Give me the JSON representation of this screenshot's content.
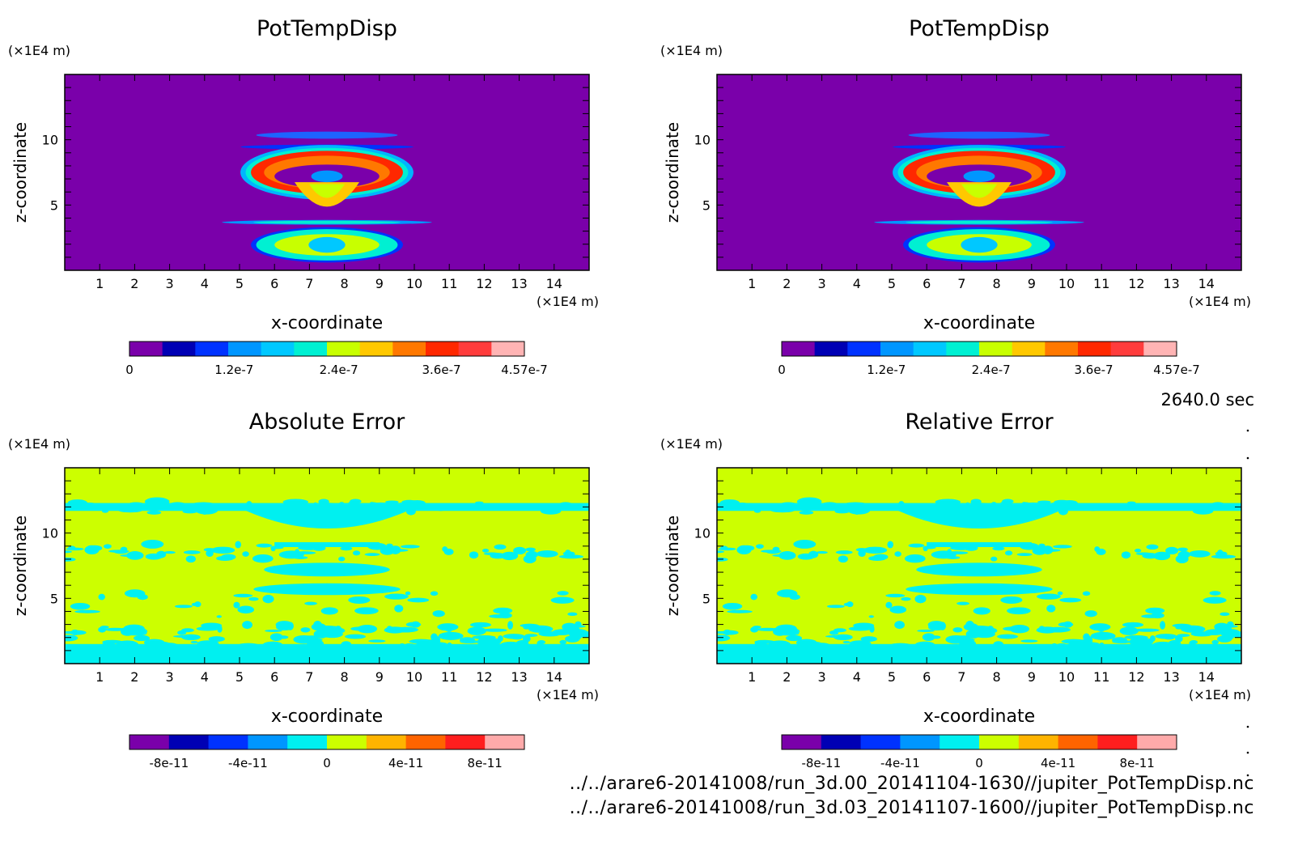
{
  "figure": {
    "time_label": "2640.0 sec",
    "file_lines": [
      "../../arare6-20141008/run_3d.00_20141104-1630//jupiter_PotTempDisp.nc",
      "../../arare6-20141008/run_3d.03_20141107-1600//jupiter_PotTempDisp.nc"
    ]
  },
  "colors": {
    "background_field": "#7a00aa",
    "error_field": "#ccff00",
    "error_patch": "#00f0f0"
  },
  "chart_data": [
    {
      "type": "heatmap",
      "title": "PotTempDisp",
      "xlabel": "x-coordinate",
      "ylabel": "z-coordinate",
      "x_unit_label": "(×1E4 m)",
      "y_unit_label": "(×1E4 m)",
      "xlim": [
        0,
        15
      ],
      "ylim": [
        0,
        15
      ],
      "x_ticks": [
        "1",
        "2",
        "3",
        "4",
        "5",
        "6",
        "7",
        "8",
        "9",
        "10",
        "11",
        "12",
        "13",
        "14"
      ],
      "y_ticks": [
        "5",
        "10"
      ],
      "colorbar": {
        "colors": [
          "#7a00aa",
          "#0000b4",
          "#0032ff",
          "#0096ff",
          "#00c8ff",
          "#00f0d2",
          "#c8ff00",
          "#ffc800",
          "#ff7800",
          "#ff2800",
          "#ff3c3c",
          "#ffb4b4"
        ],
        "labels": [
          "0",
          "1.2e-7",
          "2.4e-7",
          "3.6e-7",
          "4.57e-7"
        ]
      }
    },
    {
      "type": "heatmap",
      "title": "PotTempDisp",
      "xlabel": "x-coordinate",
      "ylabel": "z-coordinate",
      "x_unit_label": "(×1E4 m)",
      "y_unit_label": "(×1E4 m)",
      "xlim": [
        0,
        15
      ],
      "ylim": [
        0,
        15
      ],
      "x_ticks": [
        "1",
        "2",
        "3",
        "4",
        "5",
        "6",
        "7",
        "8",
        "9",
        "10",
        "11",
        "12",
        "13",
        "14"
      ],
      "y_ticks": [
        "5",
        "10"
      ],
      "colorbar": {
        "colors": [
          "#7a00aa",
          "#0000b4",
          "#0032ff",
          "#0096ff",
          "#00c8ff",
          "#00f0d2",
          "#c8ff00",
          "#ffc800",
          "#ff7800",
          "#ff2800",
          "#ff3c3c",
          "#ffb4b4"
        ],
        "labels": [
          "0",
          "1.2e-7",
          "2.4e-7",
          "3.6e-7",
          "4.57e-7"
        ]
      }
    },
    {
      "type": "heatmap",
      "title": "Absolute Error",
      "xlabel": "x-coordinate",
      "ylabel": "z-coordinate",
      "x_unit_label": "(×1E4 m)",
      "y_unit_label": "(×1E4 m)",
      "xlim": [
        0,
        15
      ],
      "ylim": [
        0,
        15
      ],
      "x_ticks": [
        "1",
        "2",
        "3",
        "4",
        "5",
        "6",
        "7",
        "8",
        "9",
        "10",
        "11",
        "12",
        "13",
        "14"
      ],
      "y_ticks": [
        "5",
        "10"
      ],
      "colorbar": {
        "colors": [
          "#7a00aa",
          "#0000b4",
          "#0032ff",
          "#0096ff",
          "#00f0f0",
          "#ccff00",
          "#ffb400",
          "#ff6400",
          "#ff1e1e",
          "#ffaaaa"
        ],
        "labels": [
          "-8e-11",
          "-4e-11",
          "0",
          "4e-11",
          "8e-11"
        ]
      }
    },
    {
      "type": "heatmap",
      "title": "Relative Error",
      "xlabel": "x-coordinate",
      "ylabel": "z-coordinate",
      "x_unit_label": "(×1E4 m)",
      "y_unit_label": "(×1E4 m)",
      "xlim": [
        0,
        15
      ],
      "ylim": [
        0,
        15
      ],
      "x_ticks": [
        "1",
        "2",
        "3",
        "4",
        "5",
        "6",
        "7",
        "8",
        "9",
        "10",
        "11",
        "12",
        "13",
        "14"
      ],
      "y_ticks": [
        "5",
        "10"
      ],
      "colorbar": {
        "colors": [
          "#7a00aa",
          "#0000b4",
          "#0032ff",
          "#0096ff",
          "#00f0f0",
          "#ccff00",
          "#ffb400",
          "#ff6400",
          "#ff1e1e",
          "#ffaaaa"
        ],
        "labels": [
          "-8e-11",
          "-4e-11",
          "0",
          "4e-11",
          "8e-11"
        ]
      }
    }
  ]
}
